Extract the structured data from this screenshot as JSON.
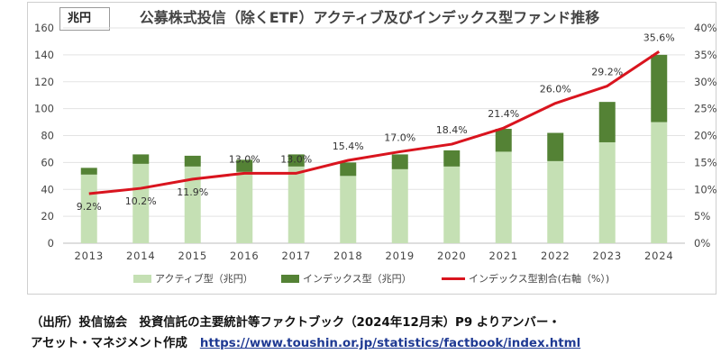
{
  "unit_label": "兆円",
  "colors": {
    "active": "#c5e0b4",
    "index": "#548235",
    "ratio_line": "#d9141e",
    "grid": "#e3e3e3",
    "link": "#1f3a93"
  },
  "legend": {
    "active": "アクティブ型（兆円）",
    "index": "インデックス型（兆円）",
    "ratio": "インデックス型割合(右軸（%）)"
  },
  "source": {
    "line1": "（出所）投信協会　投資信託の主要統計等ファクトブック（2024年12月末）P9 よりアンバー・",
    "line2_text": "アセット・マネジメント作成",
    "url": "https://www.toushin.or.jp/statistics/factbook/index.html"
  },
  "chart_data": {
    "type": "bar",
    "title": "公募株式投信（除くETF）アクティブ及びインデックス型ファンド推移",
    "stacked": true,
    "categories": [
      "2013",
      "2014",
      "2015",
      "2016",
      "2017",
      "2018",
      "2019",
      "2020",
      "2021",
      "2022",
      "2023",
      "2024"
    ],
    "series": [
      {
        "name": "アクティブ型（兆円）",
        "axis": "left",
        "values": [
          51,
          59,
          57,
          53,
          57,
          50,
          55,
          57,
          68,
          61,
          75,
          90
        ]
      },
      {
        "name": "インデックス型（兆円）",
        "axis": "left",
        "values": [
          5,
          7,
          8,
          9,
          9,
          10,
          11,
          12,
          17,
          21,
          30,
          50
        ]
      },
      {
        "name": "インデックス型割合(右軸（%）)",
        "axis": "right",
        "type": "line",
        "values": [
          9.2,
          10.2,
          11.9,
          13.0,
          13.0,
          15.4,
          17.0,
          18.4,
          21.4,
          26.0,
          29.2,
          35.6
        ],
        "labels": [
          "9.2%",
          "10.2%",
          "11.9%",
          "13.0%",
          "13.0%",
          "15.4%",
          "17.0%",
          "18.4%",
          "21.4%",
          "26.0%",
          "29.2%",
          "35.6%"
        ]
      }
    ],
    "y_left": {
      "range": [
        0,
        160
      ],
      "ticks": [
        "0",
        "20",
        "40",
        "60",
        "80",
        "100",
        "120",
        "140",
        "160"
      ]
    },
    "y_right": {
      "range": [
        0,
        40
      ],
      "ticks": [
        "0%",
        "5%",
        "10%",
        "15%",
        "20%",
        "25%",
        "30%",
        "35%",
        "40%"
      ]
    },
    "grid": true,
    "legend_position": "bottom"
  }
}
